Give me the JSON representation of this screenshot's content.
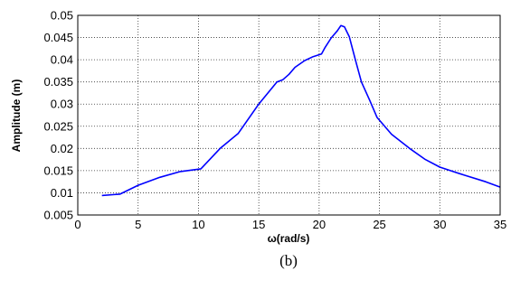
{
  "chart_data": {
    "type": "line",
    "xlabel": "ω(rad/s)",
    "ylabel": "Amplitude (m)",
    "caption": "(b)",
    "xlim": [
      0,
      35
    ],
    "ylim": [
      0.005,
      0.05
    ],
    "x_ticks": [
      "0",
      "5",
      "10",
      "15",
      "20",
      "25",
      "30",
      "35"
    ],
    "y_ticks": [
      "0.005",
      "0.01",
      "0.015",
      "0.02",
      "0.025",
      "0.03",
      "0.035",
      "0.04",
      "0.045",
      "0.05"
    ],
    "grid": true,
    "series": [
      {
        "color": "#0000ff",
        "x": [
          2.0,
          3.5,
          5.0,
          6.8,
          8.5,
          10.2,
          11.8,
          13.3,
          15.0,
          16.5,
          17.0,
          17.5,
          18.0,
          18.8,
          19.5,
          20.2,
          20.5,
          21.0,
          21.5,
          21.8,
          22.1,
          22.5,
          23.0,
          23.5,
          24.2,
          24.8,
          26.0,
          27.5,
          28.8,
          30.0,
          32.0,
          33.8,
          35.0
        ],
        "y": [
          0.0094,
          0.0097,
          0.0117,
          0.0135,
          0.0148,
          0.0154,
          0.02,
          0.0234,
          0.03,
          0.035,
          0.0355,
          0.0367,
          0.0383,
          0.0398,
          0.0407,
          0.0413,
          0.0428,
          0.0449,
          0.0465,
          0.0477,
          0.0474,
          0.0452,
          0.04,
          0.035,
          0.0308,
          0.027,
          0.0232,
          0.02,
          0.0175,
          0.0158,
          0.014,
          0.0125,
          0.0113
        ]
      }
    ]
  }
}
